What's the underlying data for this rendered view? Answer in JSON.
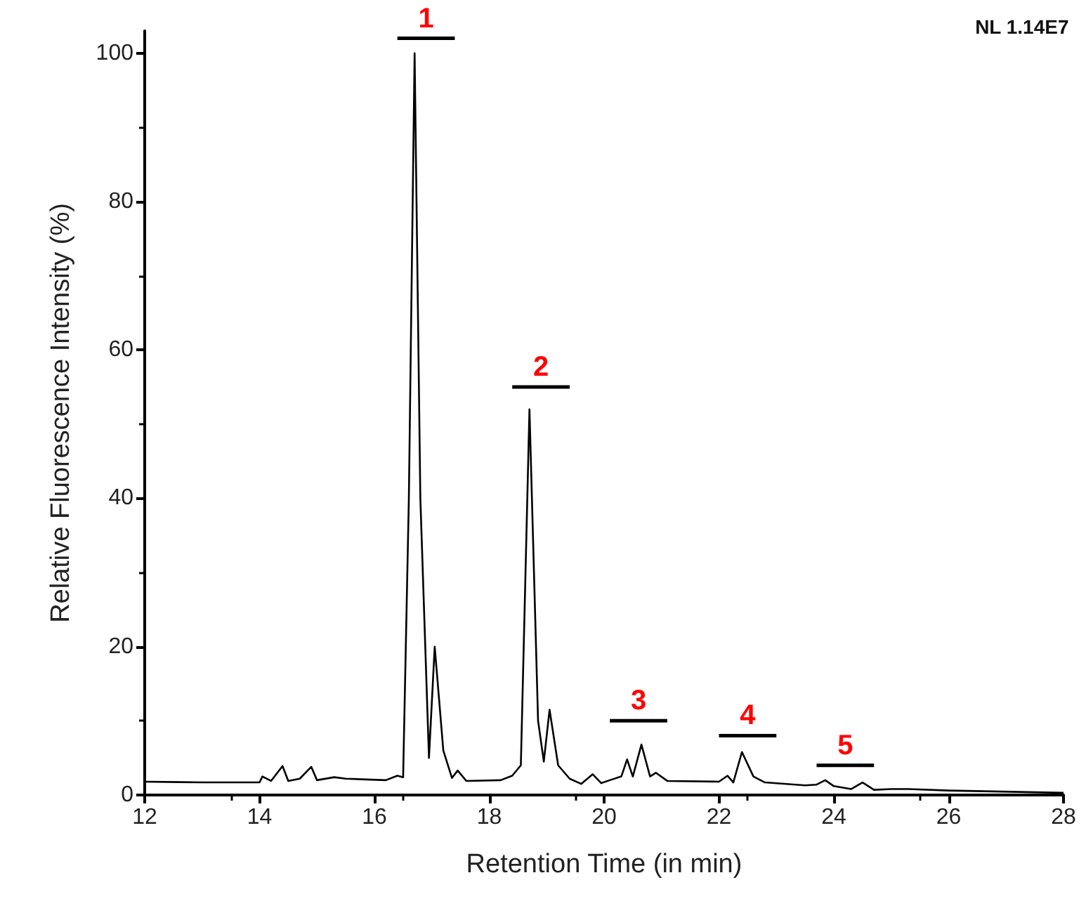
{
  "chart_data": {
    "type": "line",
    "xlabel": "Retention Time (in min)",
    "ylabel": "Relative Fluorescence Intensity (%)",
    "xlim": [
      12,
      28
    ],
    "xticks": [
      12,
      14,
      16,
      18,
      20,
      22,
      24,
      26,
      28
    ],
    "ylim": [
      0,
      103
    ],
    "yticks": [
      0,
      20,
      40,
      60,
      80,
      100
    ],
    "grid": false,
    "marker": "none",
    "line_style": "solid",
    "annotations": [
      "NL 1.14E7"
    ],
    "series": [
      {
        "color": "#000000",
        "x": [
          12,
          13,
          14.0,
          14.05,
          14.2,
          14.4,
          14.5,
          14.7,
          14.9,
          15.0,
          15.3,
          15.5,
          16.2,
          16.4,
          16.5,
          16.6,
          16.7,
          16.8,
          16.95,
          17.05,
          17.2,
          17.35,
          17.45,
          17.6,
          18.2,
          18.4,
          18.55,
          18.7,
          18.85,
          18.95,
          19.05,
          19.2,
          19.4,
          19.6,
          19.8,
          19.95,
          20.1,
          20.3,
          20.4,
          20.5,
          20.65,
          20.8,
          20.9,
          21.1,
          22.0,
          22.15,
          22.25,
          22.4,
          22.6,
          22.8,
          23.5,
          23.7,
          23.85,
          24.0,
          24.3,
          24.5,
          24.7,
          25.0,
          25.3,
          26,
          28
        ],
        "values": [
          1.8,
          1.7,
          1.7,
          2.5,
          1.9,
          3.9,
          1.9,
          2.2,
          3.8,
          2.0,
          2.4,
          2.2,
          2.0,
          2.6,
          2.4,
          40,
          100,
          40,
          5,
          20,
          6,
          2.3,
          3.3,
          1.9,
          2.0,
          2.6,
          4,
          52,
          10,
          4.5,
          11.5,
          4.0,
          2.2,
          1.5,
          2.8,
          1.6,
          2,
          2.5,
          4.8,
          2.5,
          6.8,
          2.5,
          3.0,
          1.9,
          1.8,
          2.6,
          1.7,
          5.8,
          2.5,
          1.7,
          1.3,
          1.4,
          2.0,
          1.2,
          0.8,
          1.7,
          0.7,
          0.8,
          0.8,
          0.6,
          0.3
        ]
      },
      {
        "name": "1",
        "color": "#000000",
        "x": [
          16.4,
          16.9,
          17.4
        ],
        "values": [
          102,
          102,
          102
        ]
      },
      {
        "name": "2",
        "color": "#000000",
        "x": [
          18.4,
          18.9,
          19.4
        ],
        "values": [
          55,
          55,
          55
        ]
      },
      {
        "name": "3",
        "color": "#000000",
        "x": [
          20.1,
          20.6,
          21.1
        ],
        "values": [
          10,
          10,
          10
        ]
      },
      {
        "name": "4",
        "color": "#000000",
        "x": [
          22.0,
          22.5,
          23.0
        ],
        "values": [
          8,
          8,
          8
        ]
      },
      {
        "name": "5",
        "color": "#000000",
        "x": [
          23.7,
          24.2,
          24.7
        ],
        "values": [
          4,
          4,
          4
        ]
      }
    ]
  }
}
